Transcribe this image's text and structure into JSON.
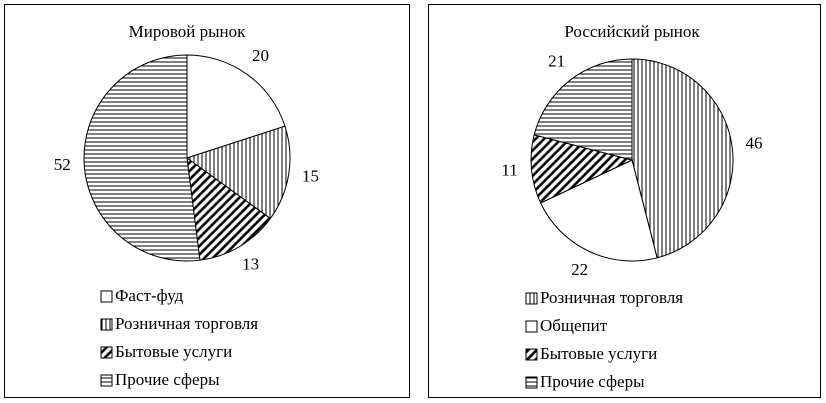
{
  "chart_data": [
    {
      "type": "pie",
      "title": "Мировой рынок",
      "categories": [
        "Фаст-фуд",
        "Розничная торговля",
        "Бытовые услуги",
        "Прочие сферы"
      ],
      "values": [
        20,
        15,
        13,
        52
      ],
      "fills": [
        "none",
        "vertical",
        "diagonal",
        "horizontal"
      ]
    },
    {
      "type": "pie",
      "title": "Российский рынок",
      "categories": [
        "Розничная торговля",
        "Общепит",
        "Бытовые услуги",
        "Прочие сферы"
      ],
      "values": [
        46,
        22,
        11,
        21
      ],
      "fills": [
        "vertical",
        "none",
        "diagonal",
        "horizontal"
      ]
    }
  ]
}
